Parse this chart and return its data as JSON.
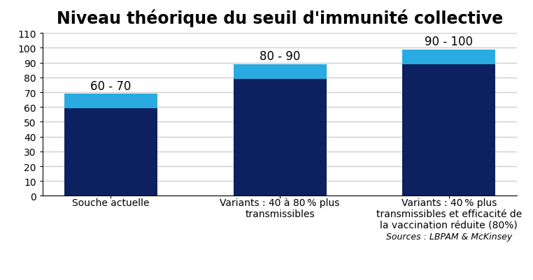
{
  "title": "Niveau théorique du seuil d'immunité collective",
  "categories": [
    "Souche actuelle",
    "Variants : 40 à 80 % plus\ntransmissibles",
    "Variants : 40 % plus\ntransmissibles et efficacité de\nla vaccination réduite (80%)\n~Sources : LBPAM & McKinsey"
  ],
  "dark_values": [
    59,
    79,
    89
  ],
  "light_values": [
    10,
    10,
    10
  ],
  "labels": [
    "60 - 70",
    "80 - 90",
    "90 - 100"
  ],
  "dark_color": "#0D2060",
  "light_color": "#29ABE2",
  "bar_width": 0.55,
  "ylim": [
    0,
    110
  ],
  "yticks": [
    0,
    10,
    20,
    30,
    40,
    50,
    60,
    70,
    80,
    90,
    100,
    110
  ],
  "title_fontsize": 17,
  "label_fontsize": 12,
  "tick_fontsize": 10,
  "cat_fontsize": 10,
  "background_color": "#FFFFFF",
  "plot_bg_color": "#FFFFFF",
  "grid_color": "#CCCCCC"
}
